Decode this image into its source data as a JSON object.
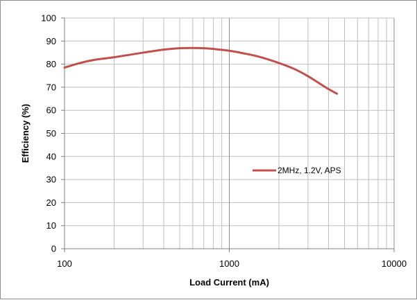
{
  "chart_data": {
    "type": "line",
    "title": "",
    "xlabel": "Load Current (mA)",
    "ylabel": "Efficiency (%)",
    "x_scale": "log",
    "xlim": [
      100,
      10000
    ],
    "ylim": [
      0,
      100
    ],
    "x_ticks": [
      100,
      1000,
      10000
    ],
    "x_tick_labels": [
      "100",
      "1000",
      "10000"
    ],
    "y_ticks": [
      0,
      10,
      20,
      30,
      40,
      50,
      60,
      70,
      80,
      90,
      100
    ],
    "y_tick_labels": [
      "0",
      "10",
      "20",
      "30",
      "40",
      "50",
      "60",
      "70",
      "80",
      "90",
      "100"
    ],
    "grid": true,
    "legend_position": "center-right",
    "series": [
      {
        "name": "2MHz, 1.2V, APS",
        "color": "#c0504d",
        "x": [
          100,
          120,
          150,
          200,
          300,
          400,
          500,
          600,
          700,
          800,
          1000,
          1200,
          1500,
          2000,
          2500,
          3000,
          3500,
          4000,
          4500
        ],
        "y": [
          78.5,
          80.2,
          81.8,
          83.0,
          85.0,
          86.3,
          86.9,
          87.0,
          86.9,
          86.6,
          85.8,
          84.8,
          83.3,
          80.5,
          77.8,
          74.8,
          71.8,
          69.2,
          67.2
        ]
      }
    ]
  }
}
